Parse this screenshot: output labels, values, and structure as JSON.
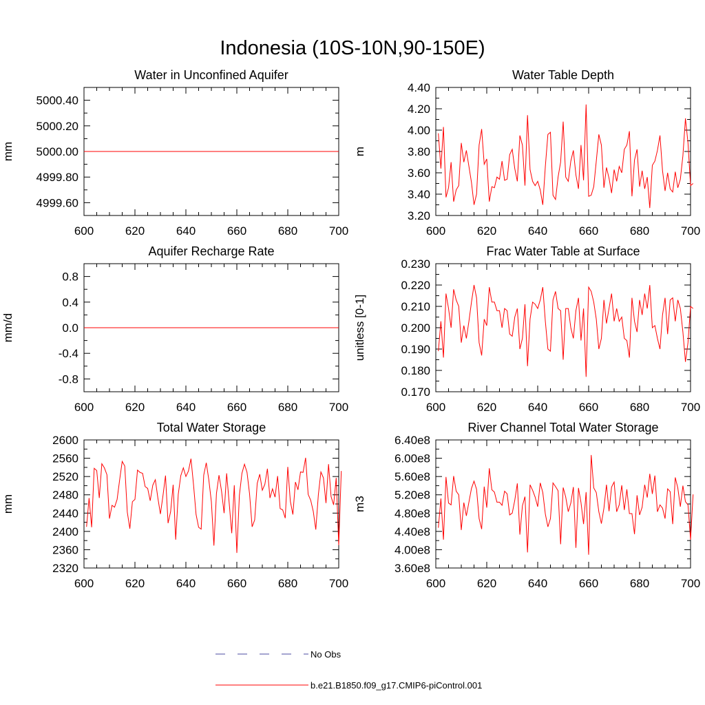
{
  "figure": {
    "title": "Indonesia (10S-10N,90-150E)",
    "series_color": "#ff0000",
    "obs_color": "#4a4aa0"
  },
  "legend": {
    "obs_label": "No Obs",
    "model_label": "b.e21.B1850.f09_g17.CMIP6-piControl.001"
  },
  "chart_data": [
    {
      "type": "line",
      "title": "Water in Unconfined Aquifer",
      "xlabel": "",
      "ylabel": "mm",
      "xlim": [
        600,
        700
      ],
      "ylim": [
        4999.5,
        5000.5
      ],
      "xticks": [
        600,
        620,
        640,
        660,
        680,
        700
      ],
      "yticks": [
        4999.6,
        4999.8,
        5000.0,
        5000.2,
        5000.4
      ],
      "ytick_labels": [
        "4999.60",
        "4999.80",
        "5000.00",
        "5000.20",
        "5000.40"
      ],
      "x_start": 601,
      "series": [
        {
          "name": "b.e21.B1850.f09_g17.CMIP6-piControl.001",
          "values": [
            5000.0,
            5000.0
          ]
        }
      ],
      "x": [
        600,
        700
      ]
    },
    {
      "type": "line",
      "title": "Water Table Depth",
      "xlabel": "",
      "ylabel": "m",
      "xlim": [
        600,
        700
      ],
      "ylim": [
        3.2,
        4.4
      ],
      "xticks": [
        600,
        620,
        640,
        660,
        680,
        700
      ],
      "yticks": [
        3.2,
        3.4,
        3.6,
        3.8,
        4.0,
        4.2,
        4.4
      ],
      "ytick_labels": [
        "3.20",
        "3.40",
        "3.60",
        "3.80",
        "4.00",
        "4.20",
        "4.40"
      ],
      "x_start": 601,
      "series": [
        {
          "name": "b.e21.B1850.f09_g17.CMIP6-piControl.001",
          "values": [
            3.97,
            3.64,
            4.03,
            3.37,
            3.46,
            3.7,
            3.33,
            3.44,
            3.48,
            3.88,
            3.7,
            3.81,
            3.66,
            3.51,
            3.3,
            3.4,
            3.86,
            4.01,
            3.68,
            3.73,
            3.33,
            3.47,
            3.46,
            3.56,
            3.54,
            3.71,
            3.53,
            3.54,
            3.77,
            3.82,
            3.64,
            3.52,
            3.95,
            3.86,
            3.48,
            4.14,
            3.63,
            3.52,
            3.48,
            3.52,
            3.44,
            3.3,
            3.66,
            3.96,
            3.98,
            3.39,
            3.35,
            3.56,
            3.7,
            4.08,
            3.56,
            3.52,
            3.71,
            3.81,
            3.58,
            3.45,
            3.86,
            3.53,
            4.24,
            3.38,
            3.39,
            3.47,
            3.71,
            3.96,
            3.86,
            3.46,
            3.65,
            3.55,
            3.41,
            3.63,
            3.52,
            3.66,
            3.6,
            3.82,
            3.86,
            3.99,
            3.38,
            3.72,
            3.82,
            3.47,
            3.62,
            3.45,
            3.56,
            3.27,
            3.67,
            3.71,
            3.81,
            3.95,
            3.62,
            3.43,
            3.6,
            3.45,
            3.42,
            3.61,
            3.46,
            3.54,
            3.76,
            4.11,
            3.88,
            3.48,
            3.5
          ]
        }
      ],
      "x_step": 1
    },
    {
      "type": "line",
      "title": "Aquifer Recharge Rate",
      "xlabel": "",
      "ylabel": "mm/d",
      "xlim": [
        600,
        700
      ],
      "ylim": [
        -1.0,
        1.0
      ],
      "xticks": [
        600,
        620,
        640,
        660,
        680,
        700
      ],
      "yticks": [
        -0.8,
        -0.4,
        0.0,
        0.4,
        0.8
      ],
      "ytick_labels": [
        "-0.8",
        "-0.4",
        "0.0",
        "0.4",
        "0.8"
      ],
      "x_start": 601,
      "series": [
        {
          "name": "b.e21.B1850.f09_g17.CMIP6-piControl.001",
          "values": [
            0.0,
            0.0
          ]
        }
      ],
      "x": [
        600,
        700
      ]
    },
    {
      "type": "line",
      "title": "Frac Water Table at Surface",
      "xlabel": "",
      "ylabel": "unitless [0-1]",
      "xlim": [
        600,
        700
      ],
      "ylim": [
        0.17,
        0.23
      ],
      "xticks": [
        600,
        620,
        640,
        660,
        680,
        700
      ],
      "yticks": [
        0.17,
        0.18,
        0.19,
        0.2,
        0.21,
        0.22,
        0.23
      ],
      "ytick_labels": [
        "0.170",
        "0.180",
        "0.190",
        "0.200",
        "0.210",
        "0.220",
        "0.230"
      ],
      "x_start": 601,
      "series": [
        {
          "name": "b.e21.B1850.f09_g17.CMIP6-piControl.001",
          "values": [
            0.189,
            0.203,
            0.186,
            0.216,
            0.209,
            0.2,
            0.218,
            0.213,
            0.21,
            0.193,
            0.201,
            0.195,
            0.203,
            0.212,
            0.22,
            0.214,
            0.193,
            0.187,
            0.204,
            0.201,
            0.219,
            0.212,
            0.212,
            0.208,
            0.208,
            0.2,
            0.209,
            0.208,
            0.197,
            0.196,
            0.205,
            0.209,
            0.19,
            0.195,
            0.211,
            0.182,
            0.204,
            0.212,
            0.211,
            0.209,
            0.213,
            0.219,
            0.203,
            0.19,
            0.189,
            0.213,
            0.217,
            0.209,
            0.208,
            0.185,
            0.209,
            0.209,
            0.2,
            0.195,
            0.208,
            0.214,
            0.194,
            0.209,
            0.177,
            0.219,
            0.217,
            0.212,
            0.204,
            0.19,
            0.195,
            0.213,
            0.202,
            0.209,
            0.216,
            0.203,
            0.209,
            0.203,
            0.205,
            0.195,
            0.194,
            0.186,
            0.214,
            0.203,
            0.198,
            0.213,
            0.206,
            0.216,
            0.209,
            0.22,
            0.2,
            0.201,
            0.195,
            0.19,
            0.206,
            0.214,
            0.197,
            0.213,
            0.214,
            0.203,
            0.213,
            0.209,
            0.198,
            0.184,
            0.193,
            0.21,
            0.209
          ]
        }
      ],
      "x_step": 1
    },
    {
      "type": "line",
      "title": "Total Water Storage",
      "xlabel": "",
      "ylabel": "mm",
      "xlim": [
        600,
        700
      ],
      "ylim": [
        2320,
        2600
      ],
      "xticks": [
        600,
        620,
        640,
        660,
        680,
        700
      ],
      "yticks": [
        2320,
        2360,
        2400,
        2440,
        2480,
        2520,
        2560,
        2600
      ],
      "ytick_labels": [
        "2320",
        "2360",
        "2400",
        "2440",
        "2480",
        "2520",
        "2560",
        "2600"
      ],
      "x_start": 601,
      "series": [
        {
          "name": "b.e21.B1850.f09_g17.CMIP6-piControl.001",
          "values": [
            2410,
            2473,
            2409,
            2538,
            2533,
            2473,
            2548,
            2539,
            2524,
            2428,
            2457,
            2453,
            2470,
            2513,
            2553,
            2543,
            2442,
            2406,
            2465,
            2470,
            2534,
            2529,
            2527,
            2498,
            2494,
            2467,
            2501,
            2513,
            2473,
            2438,
            2478,
            2522,
            2418,
            2443,
            2502,
            2382,
            2481,
            2522,
            2539,
            2520,
            2532,
            2559,
            2502,
            2437,
            2409,
            2405,
            2523,
            2550,
            2513,
            2465,
            2369,
            2483,
            2523,
            2488,
            2440,
            2527,
            2462,
            2396,
            2501,
            2353,
            2479,
            2527,
            2547,
            2529,
            2482,
            2410,
            2425,
            2505,
            2525,
            2490,
            2503,
            2537,
            2473,
            2493,
            2475,
            2521,
            2450,
            2447,
            2429,
            2541,
            2466,
            2437,
            2508,
            2491,
            2530,
            2529,
            2561,
            2481,
            2468,
            2444,
            2404,
            2480,
            2530,
            2517,
            2462,
            2547,
            2476,
            2458,
            2517,
            2370,
            2532
          ]
        }
      ],
      "x_step": 1
    },
    {
      "type": "line",
      "title": "River Channel Total Water Storage",
      "xlabel": "",
      "ylabel": "m3",
      "xlim": [
        600,
        700
      ],
      "ylim": [
        360000000.0,
        640000000.0
      ],
      "xticks": [
        600,
        620,
        640,
        660,
        680,
        700
      ],
      "yticks": [
        360000000.0,
        400000000.0,
        440000000.0,
        480000000.0,
        520000000.0,
        560000000.0,
        600000000.0,
        640000000.0
      ],
      "ytick_labels": [
        "3.60e8",
        "4.00e8",
        "4.40e8",
        "4.80e8",
        "5.20e8",
        "5.60e8",
        "6.00e8",
        "6.40e8"
      ],
      "x_start": 601,
      "series": [
        {
          "name": "b.e21.B1850.f09_g17.CMIP6-piControl.001",
          "values": [
            448000000.0,
            512000000.0,
            422000000.0,
            559000000.0,
            502000000.0,
            498000000.0,
            561000000.0,
            528000000.0,
            520000000.0,
            443000000.0,
            503000000.0,
            474000000.0,
            504000000.0,
            534000000.0,
            550000000.0,
            532000000.0,
            468000000.0,
            445000000.0,
            538000000.0,
            492000000.0,
            578000000.0,
            531000000.0,
            526000000.0,
            504000000.0,
            504000000.0,
            497000000.0,
            528000000.0,
            522000000.0,
            476000000.0,
            480000000.0,
            508000000.0,
            545000000.0,
            433000000.0,
            496000000.0,
            516000000.0,
            394000000.0,
            542000000.0,
            530000000.0,
            515000000.0,
            494000000.0,
            546000000.0,
            525000000.0,
            478000000.0,
            450000000.0,
            468000000.0,
            546000000.0,
            538000000.0,
            529000000.0,
            412000000.0,
            536000000.0,
            515000000.0,
            483000000.0,
            502000000.0,
            537000000.0,
            404000000.0,
            535000000.0,
            503000000.0,
            456000000.0,
            526000000.0,
            389000000.0,
            607000000.0,
            535000000.0,
            525000000.0,
            483000000.0,
            457000000.0,
            491000000.0,
            542000000.0,
            484000000.0,
            537000000.0,
            548000000.0,
            483000000.0,
            498000000.0,
            541000000.0,
            487000000.0,
            532000000.0,
            479000000.0,
            479000000.0,
            434000000.0,
            519000000.0,
            476000000.0,
            493000000.0,
            542000000.0,
            514000000.0,
            566000000.0,
            522000000.0,
            562000000.0,
            483000000.0,
            498000000.0,
            491000000.0,
            468000000.0,
            533000000.0,
            527000000.0,
            456000000.0,
            558000000.0,
            535000000.0,
            494000000.0,
            540000000.0,
            505000000.0,
            498000000.0,
            422000000.0,
            521000000.0
          ]
        }
      ],
      "x_step": 1
    }
  ]
}
